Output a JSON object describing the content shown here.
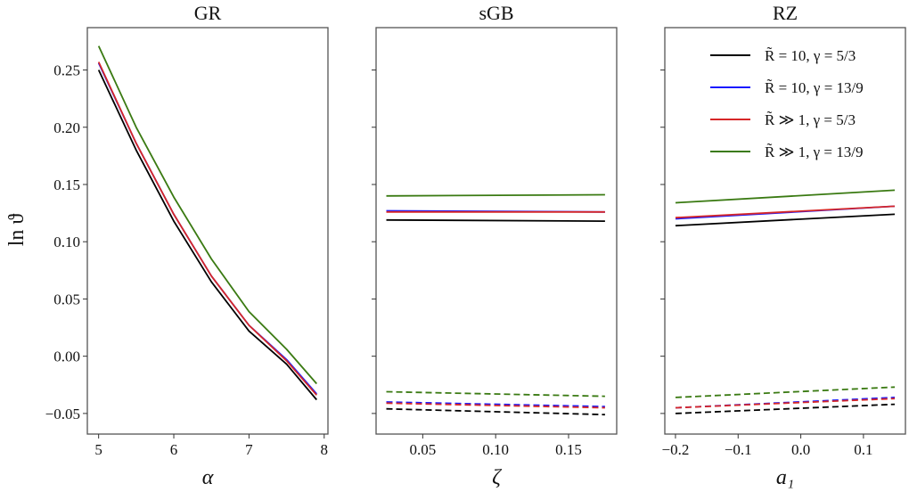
{
  "figure": {
    "ylabel": "ln ϑ",
    "legend": [
      {
        "label": "R̃ = 10, γ = 5/3",
        "color": "#000000"
      },
      {
        "label": "R̃ = 10, γ = 13/9",
        "color": "#1a1aff"
      },
      {
        "label": "R̃ ≫ 1, γ = 5/3",
        "color": "#d62728"
      },
      {
        "label": "R̃ ≫ 1, γ = 13/9",
        "color": "#3a7a12"
      }
    ]
  },
  "chart_data": [
    {
      "type": "line",
      "title": "GR",
      "xlabel": "α",
      "ylabel": "ln ϑ",
      "xlim": [
        4.85,
        8.05
      ],
      "ylim": [
        -0.068,
        0.287
      ],
      "xticks": [
        5,
        6,
        7,
        8
      ],
      "xticklabels": [
        "5",
        "6",
        "7",
        "8"
      ],
      "yticks": [
        -0.05,
        0.0,
        0.05,
        0.1,
        0.15,
        0.2,
        0.25
      ],
      "yticklabels": [
        "−0.05",
        "0.00",
        "0.05",
        "0.10",
        "0.15",
        "0.20",
        "0.25"
      ],
      "show_yticklabels": true,
      "x": [
        5.0,
        5.5,
        6.0,
        6.5,
        7.0,
        7.5,
        7.9
      ],
      "series": [
        {
          "name": "R̃ = 10, γ = 5/3",
          "style": "solid",
          "color": "#000000",
          "values": [
            0.25,
            0.18,
            0.118,
            0.065,
            0.022,
            -0.007,
            -0.038
          ]
        },
        {
          "name": "R̃ = 10, γ = 13/9",
          "style": "solid",
          "color": "#1a1aff",
          "values": [
            0.256,
            0.186,
            0.124,
            0.07,
            0.027,
            -0.003,
            -0.033
          ]
        },
        {
          "name": "R̃ ≫ 1, γ = 5/3",
          "style": "solid",
          "color": "#d62728",
          "values": [
            0.257,
            0.186,
            0.124,
            0.07,
            0.027,
            -0.004,
            -0.034
          ]
        },
        {
          "name": "R̃ ≫ 1, γ = 13/9",
          "style": "solid",
          "color": "#3a7a12",
          "values": [
            0.271,
            0.2,
            0.139,
            0.085,
            0.039,
            0.006,
            -0.024
          ]
        }
      ]
    },
    {
      "type": "line",
      "title": "sGB",
      "xlabel": "ζ",
      "ylabel": "",
      "xlim": [
        0.018,
        0.183
      ],
      "ylim": [
        -0.068,
        0.287
      ],
      "xticks": [
        0.05,
        0.1,
        0.15
      ],
      "xticklabels": [
        "0.05",
        "0.10",
        "0.15"
      ],
      "yticks": [
        -0.05,
        0.0,
        0.05,
        0.1,
        0.15,
        0.2,
        0.25
      ],
      "yticklabels": [],
      "show_yticklabels": false,
      "x": [
        0.025,
        0.175
      ],
      "series": [
        {
          "name": "R̃ = 10, γ = 5/3",
          "style": "solid",
          "color": "#000000",
          "values": [
            0.119,
            0.118
          ]
        },
        {
          "name": "R̃ = 10, γ = 13/9",
          "style": "solid",
          "color": "#1a1aff",
          "values": [
            0.127,
            0.126
          ]
        },
        {
          "name": "R̃ ≫ 1, γ = 5/3",
          "style": "solid",
          "color": "#d62728",
          "values": [
            0.126,
            0.126
          ]
        },
        {
          "name": "R̃ ≫ 1, γ = 13/9",
          "style": "solid",
          "color": "#3a7a12",
          "values": [
            0.14,
            0.141
          ]
        },
        {
          "name": "R̃ = 10, γ = 5/3 (dashed)",
          "style": "dashed",
          "color": "#000000",
          "values": [
            -0.046,
            -0.051
          ]
        },
        {
          "name": "R̃ = 10, γ = 13/9 (dashed)",
          "style": "dashed",
          "color": "#1a1aff",
          "values": [
            -0.04,
            -0.044
          ]
        },
        {
          "name": "R̃ ≫ 1, γ = 5/3 (dashed)",
          "style": "dashed",
          "color": "#d62728",
          "values": [
            -0.041,
            -0.045
          ]
        },
        {
          "name": "R̃ ≫ 1, γ = 13/9 (dashed)",
          "style": "dashed",
          "color": "#3a7a12",
          "values": [
            -0.031,
            -0.035
          ]
        }
      ]
    },
    {
      "type": "line",
      "title": "RZ",
      "xlabel": "a₁",
      "ylabel": "",
      "xlim": [
        -0.217,
        0.167
      ],
      "ylim": [
        -0.068,
        0.287
      ],
      "xticks": [
        -0.2,
        -0.1,
        0.0,
        0.1
      ],
      "xticklabels": [
        "−0.2",
        "−0.1",
        "0.0",
        "0.1"
      ],
      "yticks": [
        -0.05,
        0.0,
        0.05,
        0.1,
        0.15,
        0.2,
        0.25
      ],
      "yticklabels": [],
      "show_yticklabels": false,
      "x": [
        -0.2,
        0.15
      ],
      "legend_position": "upper right",
      "series": [
        {
          "name": "R̃ = 10, γ = 5/3",
          "style": "solid",
          "color": "#000000",
          "values": [
            0.114,
            0.124
          ]
        },
        {
          "name": "R̃ = 10, γ = 13/9",
          "style": "solid",
          "color": "#1a1aff",
          "values": [
            0.12,
            0.131
          ]
        },
        {
          "name": "R̃ ≫ 1, γ = 5/3",
          "style": "solid",
          "color": "#d62728",
          "values": [
            0.121,
            0.131
          ]
        },
        {
          "name": "R̃ ≫ 1, γ = 13/9",
          "style": "solid",
          "color": "#3a7a12",
          "values": [
            0.134,
            0.145
          ]
        },
        {
          "name": "R̃ = 10, γ = 5/3 (dashed)",
          "style": "dashed",
          "color": "#000000",
          "values": [
            -0.05,
            -0.042
          ]
        },
        {
          "name": "R̃ = 10, γ = 13/9 (dashed)",
          "style": "dashed",
          "color": "#1a1aff",
          "values": [
            -0.045,
            -0.036
          ]
        },
        {
          "name": "R̃ ≫ 1, γ = 5/3 (dashed)",
          "style": "dashed",
          "color": "#d62728",
          "values": [
            -0.045,
            -0.037
          ]
        },
        {
          "name": "R̃ ≫ 1, γ = 13/9 (dashed)",
          "style": "dashed",
          "color": "#3a7a12",
          "values": [
            -0.036,
            -0.027
          ]
        }
      ]
    }
  ]
}
